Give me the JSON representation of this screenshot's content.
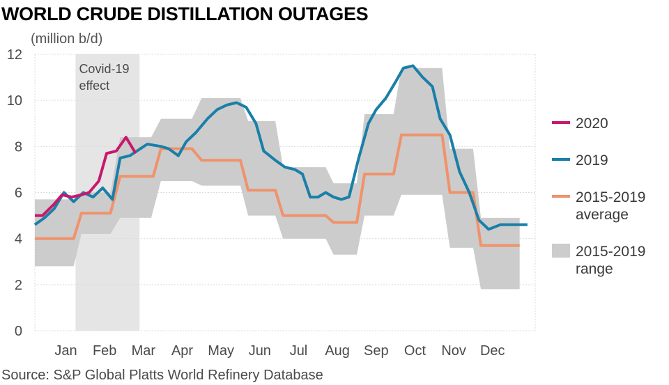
{
  "chart_data": {
    "type": "line",
    "title": "WORLD CRUDE DISTILLATION OUTAGES",
    "unit_label": "(million b/d)",
    "source": "Source: S&P Global Platts World Refinery Database",
    "x_categories": [
      "Jan",
      "Feb",
      "Mar",
      "Apr",
      "May",
      "Jun",
      "Jul",
      "Aug",
      "Sep",
      "Oct",
      "Nov",
      "Dec"
    ],
    "y_ticks": [
      0,
      2,
      4,
      6,
      8,
      10,
      12
    ],
    "ylim": [
      0,
      12
    ],
    "xlim": [
      0.3,
      13.2
    ],
    "grid": true,
    "legend_position": "right",
    "annotation": {
      "lines": [
        "Covid-19",
        "effect"
      ],
      "x_start": 1.35,
      "x_end": 3.0
    },
    "legend": [
      {
        "key": "2020",
        "lines": [
          "2020"
        ],
        "type": "line"
      },
      {
        "key": "2019",
        "lines": [
          "2019"
        ],
        "type": "line"
      },
      {
        "key": "avg",
        "lines": [
          "2015-2019",
          "average"
        ],
        "type": "line"
      },
      {
        "key": "range",
        "lines": [
          "2015-2019",
          "range"
        ],
        "type": "area"
      }
    ],
    "colors": {
      "2020": "#c8186c",
      "2019": "#1a7fa8",
      "avg": "#f0926b",
      "range": "#cccccc",
      "covid": "#e5e5e5",
      "grid": "#dcdcdc"
    },
    "series": [
      {
        "key": "2020",
        "name": "2020",
        "points": [
          [
            0.3,
            5.0
          ],
          [
            0.5,
            5.0
          ],
          [
            0.8,
            5.5
          ],
          [
            1.0,
            5.9
          ],
          [
            1.25,
            5.8
          ],
          [
            1.5,
            5.9
          ],
          [
            1.7,
            6.0
          ],
          [
            1.95,
            6.5
          ],
          [
            2.15,
            7.7
          ],
          [
            2.4,
            7.8
          ],
          [
            2.65,
            8.4
          ],
          [
            2.9,
            7.7
          ]
        ]
      },
      {
        "key": "2019",
        "name": "2019",
        "points": [
          [
            0.3,
            4.6
          ],
          [
            0.55,
            4.9
          ],
          [
            0.8,
            5.3
          ],
          [
            1.05,
            6.0
          ],
          [
            1.3,
            5.6
          ],
          [
            1.55,
            6.0
          ],
          [
            1.8,
            5.8
          ],
          [
            2.05,
            6.2
          ],
          [
            2.3,
            5.7
          ],
          [
            2.5,
            7.5
          ],
          [
            2.75,
            7.6
          ],
          [
            3.2,
            8.1
          ],
          [
            3.55,
            8.0
          ],
          [
            3.75,
            7.9
          ],
          [
            4.0,
            7.6
          ],
          [
            4.2,
            8.2
          ],
          [
            4.45,
            8.6
          ],
          [
            4.75,
            9.2
          ],
          [
            5.0,
            9.6
          ],
          [
            5.25,
            9.8
          ],
          [
            5.5,
            9.9
          ],
          [
            5.75,
            9.7
          ],
          [
            6.0,
            9.0
          ],
          [
            6.2,
            7.8
          ],
          [
            6.5,
            7.4
          ],
          [
            6.75,
            7.1
          ],
          [
            7.0,
            7.0
          ],
          [
            7.2,
            6.8
          ],
          [
            7.4,
            5.8
          ],
          [
            7.6,
            5.8
          ],
          [
            7.8,
            6.0
          ],
          [
            8.0,
            5.8
          ],
          [
            8.2,
            5.7
          ],
          [
            8.4,
            5.8
          ],
          [
            8.65,
            7.5
          ],
          [
            8.9,
            9.0
          ],
          [
            9.1,
            9.6
          ],
          [
            9.35,
            10.1
          ],
          [
            9.6,
            10.8
          ],
          [
            9.8,
            11.4
          ],
          [
            10.05,
            11.5
          ],
          [
            10.3,
            11.0
          ],
          [
            10.55,
            10.6
          ],
          [
            10.75,
            9.2
          ],
          [
            11.0,
            8.5
          ],
          [
            11.25,
            6.9
          ],
          [
            11.5,
            6.0
          ],
          [
            11.75,
            4.8
          ],
          [
            12.0,
            4.4
          ],
          [
            12.3,
            4.6
          ],
          [
            12.6,
            4.6
          ],
          [
            13.0,
            4.6
          ]
        ]
      },
      {
        "key": "avg",
        "name": "2015-2019 average",
        "points": [
          [
            0.3,
            4.0
          ],
          [
            1.3,
            4.0
          ],
          [
            1.5,
            5.1
          ],
          [
            2.25,
            5.1
          ],
          [
            2.5,
            6.7
          ],
          [
            3.35,
            6.7
          ],
          [
            3.55,
            7.9
          ],
          [
            4.35,
            7.9
          ],
          [
            4.6,
            7.4
          ],
          [
            5.6,
            7.4
          ],
          [
            5.8,
            6.1
          ],
          [
            6.5,
            6.1
          ],
          [
            6.7,
            5.0
          ],
          [
            7.8,
            5.0
          ],
          [
            8.0,
            4.7
          ],
          [
            8.6,
            4.7
          ],
          [
            8.8,
            6.8
          ],
          [
            9.55,
            6.8
          ],
          [
            9.75,
            8.5
          ],
          [
            10.8,
            8.5
          ],
          [
            11.0,
            6.0
          ],
          [
            11.6,
            6.0
          ],
          [
            11.8,
            3.7
          ],
          [
            12.8,
            3.7
          ]
        ]
      }
    ],
    "range_band": {
      "upper": [
        [
          0.3,
          5.7
        ],
        [
          1.3,
          5.7
        ],
        [
          1.5,
          6.0
        ],
        [
          2.25,
          6.0
        ],
        [
          2.5,
          8.4
        ],
        [
          3.3,
          8.4
        ],
        [
          3.55,
          9.2
        ],
        [
          4.35,
          9.2
        ],
        [
          4.6,
          10.1
        ],
        [
          5.6,
          10.1
        ],
        [
          5.8,
          9.1
        ],
        [
          6.5,
          9.1
        ],
        [
          6.7,
          7.1
        ],
        [
          7.8,
          7.1
        ],
        [
          8.0,
          6.4
        ],
        [
          8.6,
          6.4
        ],
        [
          8.8,
          9.4
        ],
        [
          9.55,
          9.4
        ],
        [
          9.75,
          11.4
        ],
        [
          10.8,
          11.4
        ],
        [
          11.0,
          7.9
        ],
        [
          11.6,
          7.9
        ],
        [
          11.8,
          4.9
        ],
        [
          12.8,
          4.9
        ]
      ],
      "lower": [
        [
          0.3,
          2.8
        ],
        [
          1.3,
          2.8
        ],
        [
          1.5,
          4.2
        ],
        [
          2.25,
          4.2
        ],
        [
          2.5,
          4.9
        ],
        [
          3.3,
          4.9
        ],
        [
          3.55,
          6.5
        ],
        [
          4.35,
          6.5
        ],
        [
          4.6,
          6.3
        ],
        [
          5.6,
          6.3
        ],
        [
          5.8,
          5.0
        ],
        [
          6.5,
          5.0
        ],
        [
          6.7,
          4.0
        ],
        [
          7.8,
          4.0
        ],
        [
          8.0,
          3.3
        ],
        [
          8.6,
          3.3
        ],
        [
          8.8,
          5.0
        ],
        [
          9.55,
          5.0
        ],
        [
          9.75,
          5.9
        ],
        [
          10.8,
          5.9
        ],
        [
          11.0,
          3.6
        ],
        [
          11.6,
          3.6
        ],
        [
          11.8,
          1.8
        ],
        [
          12.8,
          1.8
        ]
      ]
    }
  }
}
